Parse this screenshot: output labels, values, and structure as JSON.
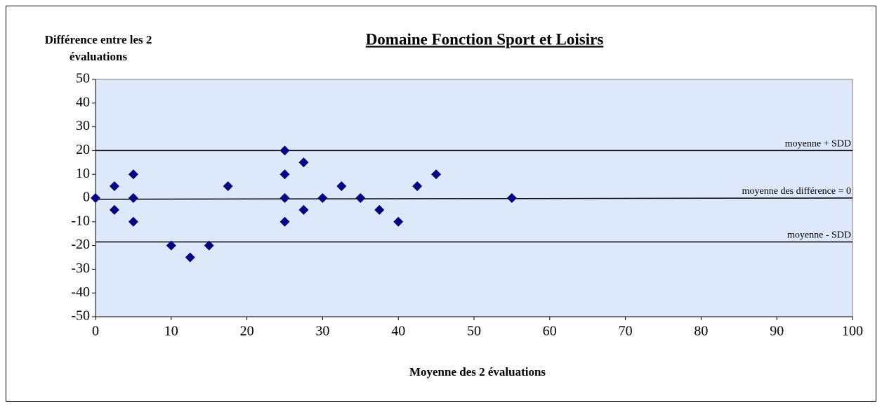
{
  "chart_data": {
    "type": "scatter",
    "title": "Domaine Fonction Sport et Loisirs",
    "y_label": [
      "Différence entre les 2",
      "évaluations"
    ],
    "x_label": "Moyenne des 2 évaluations",
    "x": [
      0,
      2.5,
      2.5,
      5,
      5,
      5,
      10,
      12.5,
      15,
      17.5,
      25,
      25,
      25,
      25,
      27.5,
      27.5,
      30,
      32.5,
      35,
      37.5,
      40,
      42.5,
      45,
      55
    ],
    "values": [
      0,
      5,
      -5,
      10,
      0,
      -10,
      -20,
      -25,
      -20,
      5,
      20,
      10,
      0,
      -10,
      15,
      -5,
      0,
      5,
      0,
      -5,
      -10,
      5,
      10,
      0
    ],
    "color": "#000080",
    "xlim": [
      0,
      100
    ],
    "xticks": [
      0,
      10,
      20,
      30,
      40,
      50,
      60,
      70,
      80,
      90,
      100
    ],
    "ylim": [
      -50,
      50
    ],
    "yticks": [
      -50,
      -40,
      -30,
      -20,
      -10,
      0,
      10,
      20,
      30,
      40,
      50
    ],
    "reference_lines": [
      {
        "label": "moyenne + SDD",
        "values": [
          20,
          20
        ]
      },
      {
        "label": "moyenne des différence = 0",
        "values": [
          -0.5,
          0
        ]
      },
      {
        "label": "moyenne - SDD",
        "values": [
          -18.5,
          -18.5
        ]
      }
    ]
  }
}
